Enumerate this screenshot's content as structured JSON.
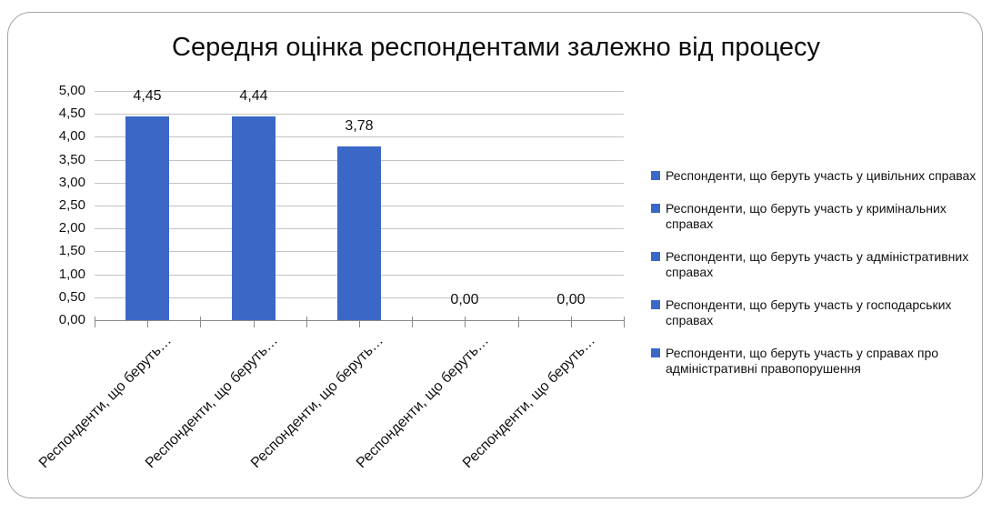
{
  "title": "Середня оцінка респондентами залежно від процесу",
  "chart_data": {
    "type": "bar",
    "title": "Середня оцінка респондентами залежно від процесу",
    "categories": [
      "Респонденти, що беруть участь у цивільних справах",
      "Респонденти, що беруть участь у кримінальних справах",
      "Респонденти, що беруть участь у адміністративних справах",
      "Респонденти, що беруть участь у господарських справах",
      "Респонденти, що беруть участь у справах про адміністративні правопорушення"
    ],
    "values": [
      4.45,
      4.44,
      3.78,
      0.0,
      0.0
    ],
    "data_labels": [
      "4,45",
      "4,44",
      "3,78",
      "0,00",
      "0,00"
    ],
    "x_tick_label_display": "Респонденти, що беруть…",
    "y_axis": {
      "min": 0,
      "max": 5,
      "step": 0.5,
      "tick_labels": [
        "0,00",
        "0,50",
        "1,00",
        "1,50",
        "2,00",
        "2,50",
        "3,00",
        "3,50",
        "4,00",
        "4,50",
        "5,00"
      ]
    },
    "ylim": [
      0,
      5
    ],
    "grid": true,
    "legend_position": "right",
    "xlabel": "",
    "ylabel": ""
  },
  "legend": {
    "items": [
      {
        "label": "Респонденти, що беруть участь у цивільних справах"
      },
      {
        "label": "Респонденти, що беруть участь у кримінальних справах"
      },
      {
        "label": "Респонденти, що беруть участь у адміністративних справах"
      },
      {
        "label": "Респонденти, що беруть участь у господарських справах"
      },
      {
        "label": "Респонденти, що беруть участь у справах про адміністративні правопорушення"
      }
    ]
  },
  "colors": {
    "bar": "#3B68C7",
    "legend_marker": "#3B68C7",
    "gridline": "#c4c4c4",
    "axis": "#8a8a8a",
    "text": "#111111",
    "frame_border": "#a6a6a6",
    "background": "#ffffff"
  }
}
